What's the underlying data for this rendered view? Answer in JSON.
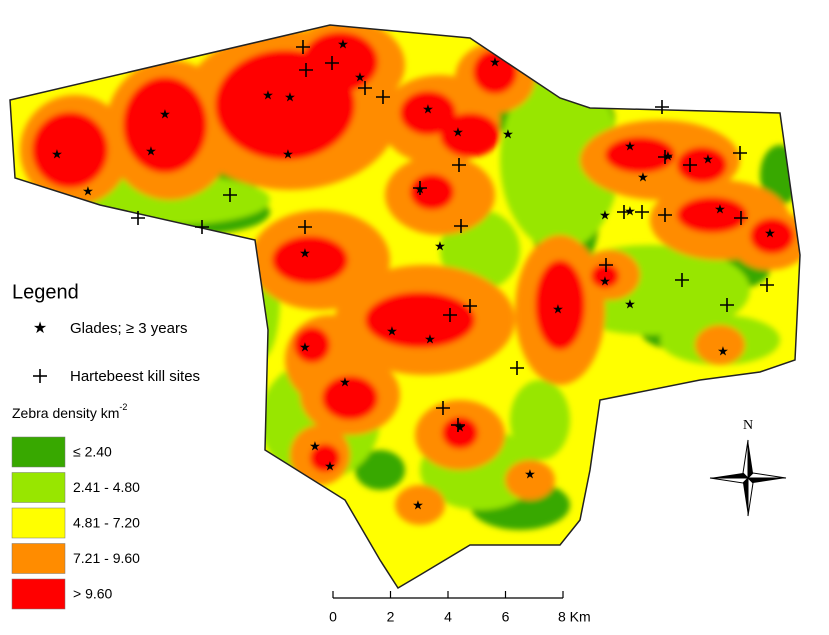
{
  "legend": {
    "title": "Legend",
    "symbols": [
      {
        "label": "Glades; ≥ 3 years"
      },
      {
        "label": "Hartebeest kill sites"
      }
    ],
    "density_title": "Zebra density km",
    "density_exponent": "-2",
    "classes": [
      {
        "label": "≤ 2.40",
        "color": "#38a800"
      },
      {
        "label": "2.41 - 4.80",
        "color": "#98e600"
      },
      {
        "label": "4.81 - 7.20",
        "color": "#ffff00"
      },
      {
        "label": "7.21 - 9.60",
        "color": "#ff8c00"
      },
      {
        "label": "> 9.60",
        "color": "#ff0000"
      }
    ]
  },
  "scale_bar": {
    "labels": [
      "0",
      "2",
      "4",
      "6",
      "8 Km"
    ]
  },
  "north_arrow": {
    "label": "N"
  }
}
